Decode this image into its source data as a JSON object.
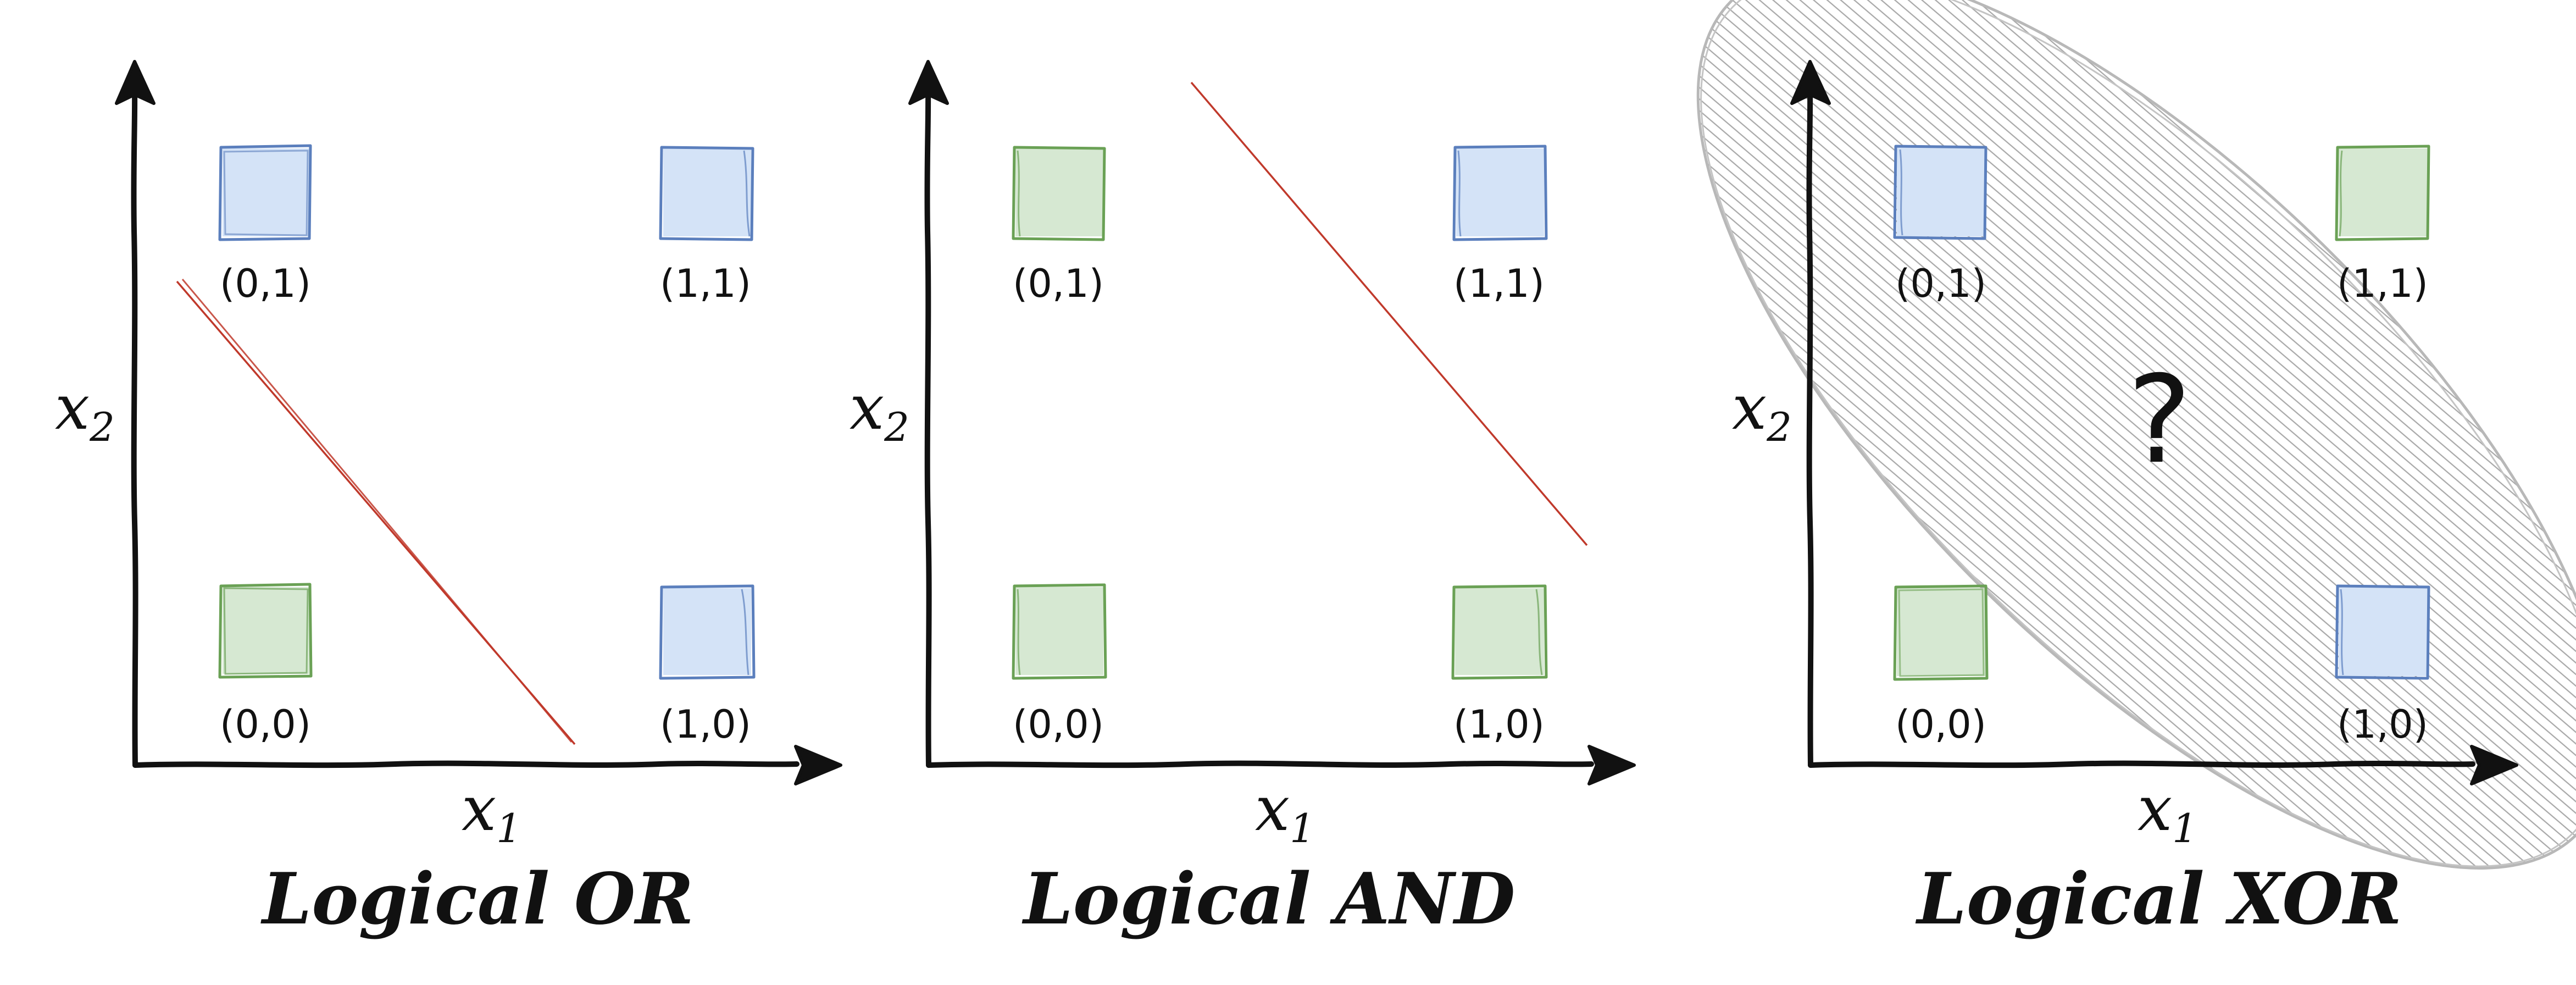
{
  "colors": {
    "blue_fill": "#d4e3f7",
    "blue_stroke": "#5b7fbd",
    "green_fill": "#d6e8d2",
    "green_stroke": "#6aa155",
    "separator": "#c0392b",
    "axis": "#111111",
    "hatch": "#aaaaaa"
  },
  "panels": [
    {
      "title": "Logical OR",
      "x_axis_label": "x",
      "x_axis_sub": "1",
      "y_axis_label": "x",
      "y_axis_sub": "2",
      "points": [
        {
          "label": "(0,0)",
          "class": "green"
        },
        {
          "label": "(1,0)",
          "class": "blue"
        },
        {
          "label": "(0,1)",
          "class": "blue"
        },
        {
          "label": "(1,1)",
          "class": "blue"
        }
      ]
    },
    {
      "title": "Logical AND",
      "x_axis_label": "x",
      "x_axis_sub": "1",
      "y_axis_label": "x",
      "y_axis_sub": "2",
      "points": [
        {
          "label": "(0,0)",
          "class": "green"
        },
        {
          "label": "(1,0)",
          "class": "green"
        },
        {
          "label": "(0,1)",
          "class": "green"
        },
        {
          "label": "(1,1)",
          "class": "blue"
        }
      ]
    },
    {
      "title": "Logical XOR",
      "x_axis_label": "x",
      "x_axis_sub": "1",
      "y_axis_label": "x",
      "y_axis_sub": "2",
      "question": "?",
      "points": [
        {
          "label": "(0,0)",
          "class": "green"
        },
        {
          "label": "(1,0)",
          "class": "blue"
        },
        {
          "label": "(0,1)",
          "class": "blue"
        },
        {
          "label": "(1,1)",
          "class": "green"
        }
      ]
    }
  ]
}
